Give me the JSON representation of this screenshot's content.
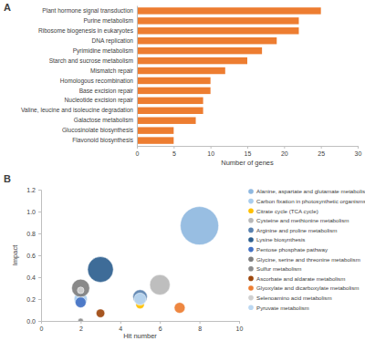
{
  "chart_data": [
    {
      "type": "bar",
      "title": "A",
      "orientation": "horizontal",
      "color": "#ed7d31",
      "grid": false,
      "categories": [
        "Plant hormone signal transduction",
        "Purine metabolism",
        "Ribosome biogenesis in eukaryotes",
        "DNA replication",
        "Pyrimidine metabolism",
        "Starch and sucrose metabolism",
        "Mismatch repair",
        "Homologous recombination",
        "Base excision repair",
        "Nucleotide excision repair",
        "Valine, leucine and isoleucine degradation",
        "Galactose metabolism",
        "Glucosinolate biosynthesis",
        "Flavonoid biosynthesis"
      ],
      "values": [
        25,
        22,
        22,
        19,
        17,
        15,
        12,
        10,
        10,
        9,
        9,
        8,
        5,
        5
      ],
      "x_label": "Number of genes",
      "xlim": [
        0,
        30
      ],
      "xticks": [
        0,
        5,
        10,
        15,
        20,
        25,
        30
      ]
    },
    {
      "type": "bubble",
      "title": "B",
      "grid": false,
      "legend": "right",
      "x_label": "Hit number",
      "y_label": "Impact",
      "xlim": [
        0,
        10
      ],
      "xticks": [
        0,
        2,
        4,
        6,
        8,
        10
      ],
      "ylim": [
        0,
        1.2
      ],
      "yticks": [
        {
          "value": 0,
          "label": "0.0"
        },
        0.2,
        0.4,
        0.6,
        0.8,
        {
          "value": 1,
          "label": "1.0"
        },
        1.2
      ],
      "series": [
        {
          "name": "Alanine, aspartate and glutamate metabolism",
          "color": "#8fb8e0",
          "x": [
            8
          ],
          "values": [
            0.87
          ],
          "sizes": [
            100
          ]
        },
        {
          "name": "Carbon fixation in photosynthetic organisms",
          "color": "#a9cdee",
          "x": [
            2
          ],
          "values": [
            0.2
          ],
          "sizes": [
            12
          ]
        },
        {
          "name": "Citrate cycle (TCA cycle)",
          "color": "#ffc000",
          "x": [
            5
          ],
          "values": [
            0.15
          ],
          "sizes": [
            5
          ]
        },
        {
          "name": "Cysteine and methionine metabolism",
          "color": "#b8b8b8",
          "x": [
            6
          ],
          "values": [
            0.33
          ],
          "sizes": [
            28
          ]
        },
        {
          "name": "Arginine and proline metabolism",
          "color": "#5a82b0",
          "x": [
            5
          ],
          "values": [
            0.22
          ],
          "sizes": [
            14
          ]
        },
        {
          "name": "Lysine biosynthesis",
          "color": "#2e5f8f",
          "x": [
            3
          ],
          "values": [
            0.47
          ],
          "sizes": [
            45
          ]
        },
        {
          "name": "Pentose phosphate pathway",
          "color": "#4472c4",
          "x": [
            2
          ],
          "values": [
            0.17
          ],
          "sizes": [
            8
          ]
        },
        {
          "name": "Glycine, serine and threonine metabolism",
          "color": "#7f7f7f",
          "x": [
            2
          ],
          "values": [
            0.3
          ],
          "sizes": [
            22
          ]
        },
        {
          "name": "Sulfur metabolism",
          "color": "#8c8c8c",
          "x": [
            2
          ],
          "values": [
            0
          ],
          "sizes": [
            2
          ]
        },
        {
          "name": "Ascorbate and aldarate metabolism",
          "color": "#9e480e",
          "x": [
            3
          ],
          "values": [
            0.07
          ],
          "sizes": [
            5
          ]
        },
        {
          "name": "Glyoxylate and dicarboxylate metabolism",
          "color": "#ed7d31",
          "x": [
            7
          ],
          "values": [
            0.12
          ],
          "sizes": [
            8
          ]
        },
        {
          "name": "Selenoamino acid metabolism",
          "color": "#d0d0d0",
          "x": [
            2
          ],
          "values": [
            0.28
          ],
          "sizes": [
            3
          ]
        },
        {
          "name": "Pyruvate metabolism",
          "color": "#bcd8f2",
          "x": [
            5
          ],
          "values": [
            0.2
          ],
          "sizes": [
            10
          ]
        }
      ]
    }
  ]
}
